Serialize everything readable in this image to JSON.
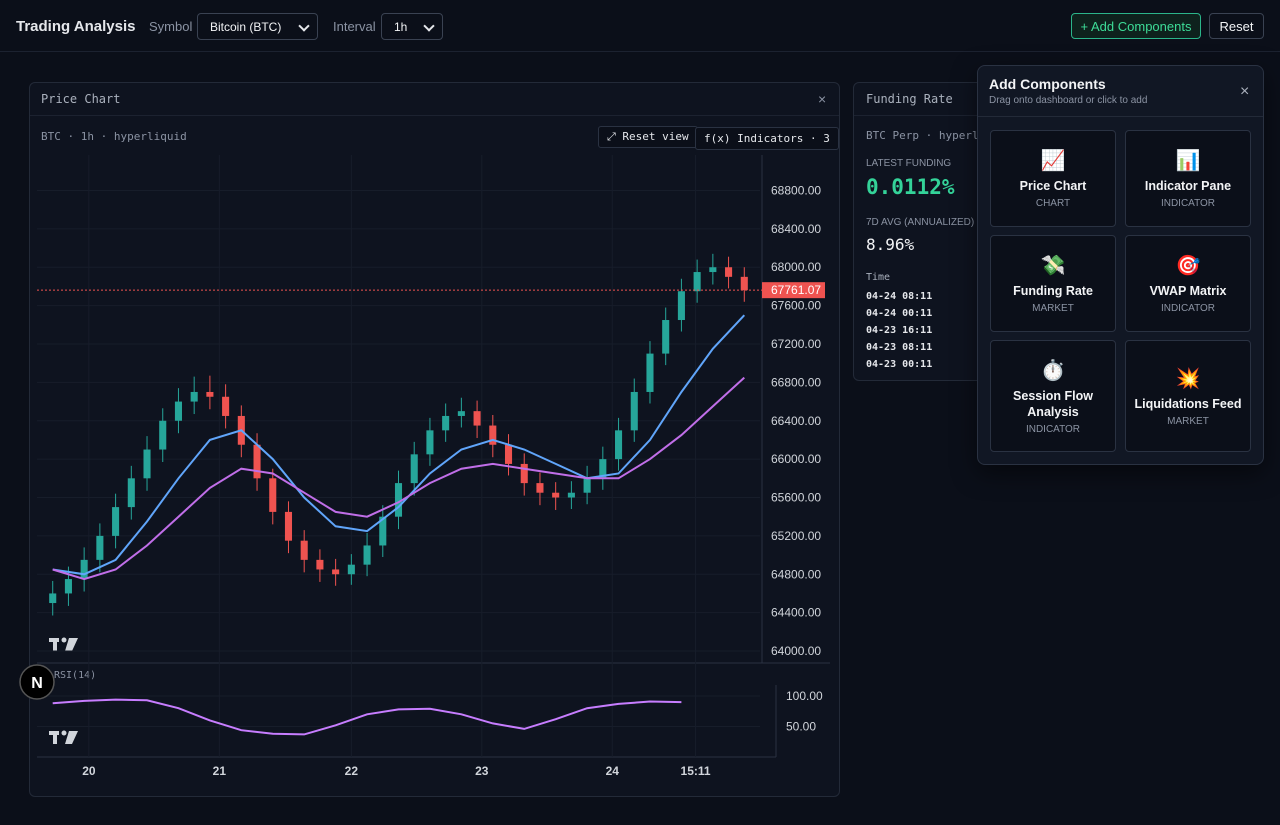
{
  "header": {
    "title": "Trading Analysis",
    "symbol_label": "Symbol",
    "symbol_value": "Bitcoin (BTC)",
    "interval_label": "Interval",
    "interval_value": "1h",
    "add_button": "+ Add Components",
    "reset_button": "Reset"
  },
  "price_panel": {
    "title": "Price Chart",
    "close": "×",
    "subtitle": "BTC · 1h · hyperliquid",
    "reset_view": "⤢ Reset view",
    "indicators": "f(x) Indicators · 3"
  },
  "chart_data": [
    {
      "type": "candlestick",
      "x": [
        0,
        1,
        2,
        3,
        4,
        5,
        6,
        7,
        8,
        9,
        10,
        11,
        12,
        13,
        14,
        15,
        16,
        17,
        18,
        19,
        20,
        21,
        22,
        23,
        24,
        25,
        26,
        27,
        28,
        29,
        30,
        31,
        32,
        33,
        34,
        35,
        36,
        37,
        38,
        39,
        40,
        41,
        42,
        43,
        44
      ],
      "open": [
        64500,
        64600,
        64750,
        64950,
        65200,
        65500,
        65800,
        66100,
        66400,
        66600,
        66700,
        66650,
        66450,
        66150,
        65800,
        65450,
        65150,
        64950,
        64850,
        64800,
        64900,
        65100,
        65400,
        65750,
        66050,
        66300,
        66450,
        66500,
        66350,
        66150,
        65950,
        65750,
        65650,
        65600,
        65650,
        65800,
        66000,
        66300,
        66700,
        67100,
        67450,
        67750,
        67950,
        68000,
        67900
      ],
      "high": [
        64730,
        64880,
        65080,
        65330,
        65640,
        65930,
        66240,
        66530,
        66740,
        66860,
        66870,
        66780,
        66560,
        66270,
        65900,
        65560,
        65260,
        65060,
        64960,
        65010,
        65230,
        65520,
        65880,
        66180,
        66430,
        66580,
        66640,
        66610,
        66460,
        66260,
        66060,
        65860,
        65760,
        65770,
        65930,
        66130,
        66430,
        66840,
        67230,
        67580,
        67880,
        68080,
        68140,
        68110,
        68000
      ],
      "low": [
        64370,
        64470,
        64620,
        64820,
        65070,
        65370,
        65670,
        65970,
        66270,
        66470,
        66520,
        66320,
        66020,
        65670,
        65320,
        65020,
        64820,
        64720,
        64680,
        64690,
        64780,
        64980,
        65270,
        65620,
        65930,
        66180,
        66330,
        66220,
        66020,
        65830,
        65620,
        65520,
        65470,
        65480,
        65530,
        65680,
        65880,
        66180,
        66580,
        66980,
        67330,
        67630,
        67820,
        67780,
        67640
      ],
      "close": [
        64600,
        64750,
        64950,
        65200,
        65500,
        65800,
        66100,
        66400,
        66600,
        66700,
        66650,
        66450,
        66150,
        65800,
        65450,
        65150,
        64950,
        64850,
        64800,
        64900,
        65100,
        65400,
        65750,
        66050,
        66300,
        66450,
        66500,
        66350,
        66150,
        65950,
        65750,
        65650,
        65600,
        65650,
        65800,
        66000,
        66300,
        66700,
        67100,
        67450,
        67750,
        67950,
        68000,
        67900,
        67761.07
      ],
      "up_color": "#26a69a",
      "down_color": "#ef5350",
      "series": [
        {
          "color": "#60a5fa",
          "x": [
            0,
            2,
            4,
            6,
            8,
            10,
            12,
            14,
            16,
            18,
            20,
            22,
            24,
            26,
            28,
            30,
            32,
            34,
            36,
            38,
            40,
            42,
            44
          ],
          "values": [
            64850,
            64800,
            64950,
            65350,
            65800,
            66200,
            66300,
            66000,
            65600,
            65300,
            65250,
            65500,
            65850,
            66100,
            66200,
            66100,
            65950,
            65800,
            65850,
            66200,
            66700,
            67150,
            67500
          ]
        },
        {
          "color": "#c06ee8",
          "x": [
            0,
            2,
            4,
            6,
            8,
            10,
            12,
            14,
            16,
            18,
            20,
            22,
            24,
            26,
            28,
            30,
            32,
            34,
            36,
            38,
            40,
            42,
            44
          ],
          "values": [
            64850,
            64750,
            64850,
            65100,
            65400,
            65700,
            65900,
            65850,
            65650,
            65450,
            65400,
            65550,
            65750,
            65900,
            65950,
            65900,
            65850,
            65800,
            65800,
            66000,
            66250,
            66550,
            66850
          ]
        }
      ],
      "xlim": [
        -1,
        45
      ],
      "ylim": [
        63875,
        69170
      ],
      "yticks": [
        {
          "value": 64000,
          "label": "64000.00"
        },
        {
          "value": 64400,
          "label": "64400.00"
        },
        {
          "value": 64800,
          "label": "64800.00"
        },
        {
          "value": 65200,
          "label": "65200.00"
        },
        {
          "value": 65600,
          "label": "65600.00"
        },
        {
          "value": 66000,
          "label": "66000.00"
        },
        {
          "value": 66400,
          "label": "66400.00"
        },
        {
          "value": 66800,
          "label": "66800.00"
        },
        {
          "value": 67200,
          "label": "67200.00"
        },
        {
          "value": 67600,
          "label": "67600.00"
        },
        {
          "value": 68000,
          "label": "68000.00"
        },
        {
          "value": 68400,
          "label": "68400.00"
        },
        {
          "value": 68800,
          "label": "68800.00"
        }
      ],
      "grid": true
    },
    {
      "type": "line",
      "title": "RSI(14)",
      "series": [
        {
          "color": "#c77dff",
          "x": [
            0,
            2,
            4,
            6,
            8,
            10,
            12,
            14,
            16,
            18,
            20,
            22,
            24,
            26,
            28,
            30,
            32,
            34,
            36,
            38,
            40
          ],
          "values": [
            88,
            92,
            94,
            93,
            80,
            60,
            44,
            38,
            37,
            52,
            70,
            78,
            79,
            70,
            55,
            46,
            62,
            80,
            87,
            91,
            90
          ]
        }
      ],
      "xlim": [
        -1,
        45
      ],
      "ylim": [
        0,
        118
      ],
      "yticks": [
        {
          "value": 100,
          "label": "100.00"
        },
        {
          "value": 50,
          "label": "50.00"
        }
      ],
      "xticks": [
        {
          "value": 2.3,
          "label": "20"
        },
        {
          "value": 10.6,
          "label": "21"
        },
        {
          "value": 19.0,
          "label": "22"
        },
        {
          "value": 27.3,
          "label": "23"
        },
        {
          "value": 35.6,
          "label": "24"
        },
        {
          "value": 40.9,
          "label": "15:11"
        }
      ],
      "grid": true
    }
  ],
  "funding_panel": {
    "title": "Funding Rate",
    "subtitle": "BTC Perp · hyperliquid",
    "latest_label": "LATEST FUNDING",
    "latest_value": "0.0112%",
    "avg_label": "7D AVG (ANNUALIZED)",
    "avg_value": "8.96%",
    "table_header": "Time",
    "times": [
      "04-24 08:11",
      "04-24 00:11",
      "04-23 16:11",
      "04-23 08:11",
      "04-23 00:11"
    ]
  },
  "add_components": {
    "title": "Add Components",
    "subtitle": "Drag onto dashboard or click to add",
    "close": "×",
    "cards": [
      {
        "icon": "📈",
        "name": "Price Chart",
        "category": "CHART"
      },
      {
        "icon": "📊",
        "name": "Indicator Pane",
        "category": "INDICATOR"
      },
      {
        "icon": "💸",
        "name": "Funding Rate",
        "category": "MARKET"
      },
      {
        "icon": "🎯",
        "name": "VWAP Matrix",
        "category": "INDICATOR"
      },
      {
        "icon": "⏱️",
        "name": "Session Flow Analysis",
        "category": "INDICATOR"
      },
      {
        "icon": "💥",
        "name": "Liquidations Feed",
        "category": "MARKET"
      }
    ]
  },
  "dev_badge": "N"
}
